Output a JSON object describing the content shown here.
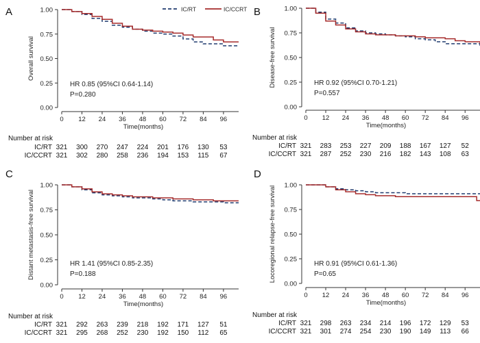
{
  "legend": [
    {
      "name": "IC/RT",
      "color": "#1f3a6e",
      "style": "dashed"
    },
    {
      "name": "IC/CCRT",
      "color": "#a52a2a",
      "style": "solid"
    }
  ],
  "number_at_risk_label": "Number at risk",
  "chart_data": [
    {
      "type": "line",
      "panel_label": "A",
      "ylabel": "Overall survival",
      "xlabel": "Time(months)",
      "ylim": [
        0,
        1
      ],
      "xlim": [
        0,
        105
      ],
      "xticks": [
        0,
        12,
        24,
        36,
        48,
        60,
        72,
        84,
        96
      ],
      "yticks": [
        0,
        0.25,
        0.5,
        0.75,
        1.0
      ],
      "ytick_labels": [
        "0.00",
        "0.25",
        "0.50",
        "0.75",
        "1.00"
      ],
      "annotation": [
        "HR 0.85 (95%CI 0.64-1.14)",
        "P=0.280"
      ],
      "show_legend": true,
      "series": [
        {
          "name": "IC/RT",
          "x": [
            0,
            6,
            12,
            18,
            24,
            30,
            36,
            42,
            48,
            54,
            60,
            66,
            72,
            78,
            84,
            90,
            96,
            105
          ],
          "y": [
            1.0,
            0.98,
            0.95,
            0.91,
            0.88,
            0.84,
            0.82,
            0.8,
            0.78,
            0.76,
            0.75,
            0.73,
            0.7,
            0.67,
            0.65,
            0.65,
            0.63,
            0.63
          ]
        },
        {
          "name": "IC/CCRT",
          "x": [
            0,
            6,
            12,
            18,
            24,
            30,
            36,
            42,
            48,
            54,
            60,
            66,
            72,
            78,
            84,
            90,
            96,
            105
          ],
          "y": [
            1.0,
            0.98,
            0.96,
            0.93,
            0.9,
            0.86,
            0.83,
            0.8,
            0.79,
            0.78,
            0.77,
            0.76,
            0.74,
            0.72,
            0.72,
            0.69,
            0.67,
            0.67
          ]
        }
      ],
      "risk_rows": [
        {
          "name": "IC/RT",
          "counts": [
            321,
            300,
            270,
            247,
            224,
            201,
            176,
            130,
            53
          ]
        },
        {
          "name": "IC/CCRT",
          "counts": [
            321,
            302,
            280,
            258,
            236,
            194,
            153,
            115,
            67
          ]
        }
      ]
    },
    {
      "type": "line",
      "panel_label": "B",
      "ylabel": "Disease-free survival",
      "xlabel": "Time(months)",
      "ylim": [
        0,
        1
      ],
      "xlim": [
        0,
        105
      ],
      "xticks": [
        0,
        12,
        24,
        36,
        48,
        60,
        72,
        84,
        96
      ],
      "yticks": [
        0,
        0.25,
        0.5,
        0.75,
        1.0
      ],
      "ytick_labels": [
        "0.00",
        "0.25",
        "0.50",
        "0.75",
        "1.00"
      ],
      "annotation": [
        "HR 0.92 (95%CI 0.70-1.21)",
        "P=0.557"
      ],
      "show_legend": false,
      "series": [
        {
          "name": "IC/RT",
          "x": [
            0,
            6,
            12,
            18,
            24,
            30,
            36,
            42,
            48,
            54,
            60,
            66,
            72,
            78,
            84,
            90,
            96,
            105
          ],
          "y": [
            1.0,
            0.96,
            0.89,
            0.85,
            0.8,
            0.77,
            0.75,
            0.74,
            0.73,
            0.72,
            0.71,
            0.69,
            0.68,
            0.66,
            0.64,
            0.64,
            0.64,
            0.62
          ]
        },
        {
          "name": "IC/CCRT",
          "x": [
            0,
            6,
            12,
            18,
            24,
            30,
            36,
            42,
            48,
            54,
            60,
            66,
            72,
            78,
            84,
            90,
            96,
            105
          ],
          "y": [
            1.0,
            0.95,
            0.87,
            0.83,
            0.79,
            0.76,
            0.74,
            0.73,
            0.73,
            0.72,
            0.72,
            0.71,
            0.7,
            0.7,
            0.69,
            0.67,
            0.66,
            0.64
          ]
        }
      ],
      "risk_rows": [
        {
          "name": "IC/RT",
          "counts": [
            321,
            283,
            253,
            227,
            209,
            188,
            167,
            127,
            52
          ]
        },
        {
          "name": "IC/CCRT",
          "counts": [
            321,
            287,
            252,
            230,
            216,
            182,
            143,
            108,
            63
          ]
        }
      ]
    },
    {
      "type": "line",
      "panel_label": "C",
      "ylabel": "Distant metastasis-free survival",
      "xlabel": "Time(months)",
      "ylim": [
        0,
        1
      ],
      "xlim": [
        0,
        105
      ],
      "xticks": [
        0,
        12,
        24,
        36,
        48,
        60,
        72,
        84,
        96
      ],
      "yticks": [
        0,
        0.25,
        0.5,
        0.75,
        1.0
      ],
      "ytick_labels": [
        "0.00",
        "0.25",
        "0.50",
        "0.75",
        "1.00"
      ],
      "annotation": [
        "HR 1.41 (95%CI 0.85-2.35)",
        "P=0.188"
      ],
      "show_legend": false,
      "series": [
        {
          "name": "IC/RT",
          "x": [
            0,
            6,
            12,
            18,
            24,
            30,
            36,
            42,
            48,
            54,
            60,
            66,
            72,
            78,
            84,
            90,
            96,
            105
          ],
          "y": [
            1.0,
            0.98,
            0.95,
            0.92,
            0.9,
            0.89,
            0.88,
            0.87,
            0.87,
            0.86,
            0.85,
            0.84,
            0.84,
            0.83,
            0.83,
            0.83,
            0.82,
            0.82
          ]
        },
        {
          "name": "IC/CCRT",
          "x": [
            0,
            6,
            12,
            18,
            24,
            30,
            36,
            42,
            48,
            54,
            60,
            66,
            72,
            78,
            84,
            90,
            96,
            105
          ],
          "y": [
            1.0,
            0.98,
            0.96,
            0.93,
            0.91,
            0.9,
            0.89,
            0.88,
            0.88,
            0.87,
            0.87,
            0.86,
            0.86,
            0.85,
            0.85,
            0.84,
            0.84,
            0.84
          ]
        }
      ],
      "risk_rows": [
        {
          "name": "IC/RT",
          "counts": [
            321,
            292,
            263,
            239,
            218,
            192,
            171,
            127,
            51
          ]
        },
        {
          "name": "IC/CCRT",
          "counts": [
            321,
            295,
            268,
            252,
            230,
            192,
            150,
            112,
            65
          ]
        }
      ]
    },
    {
      "type": "line",
      "panel_label": "D",
      "ylabel": "Locoregional relapse-free survival",
      "xlabel": "Time(months)",
      "ylim": [
        0,
        1
      ],
      "xlim": [
        0,
        105
      ],
      "xticks": [
        0,
        12,
        24,
        36,
        48,
        60,
        72,
        84,
        96
      ],
      "yticks": [
        0,
        0.25,
        0.5,
        0.75,
        1.0
      ],
      "ytick_labels": [
        "0.00",
        "0.25",
        "0.50",
        "0.75",
        "1.00"
      ],
      "annotation": [
        "HR 0.91 (95%CI 0.61-1.36)",
        "P=0.65"
      ],
      "show_legend": false,
      "series": [
        {
          "name": "IC/RT",
          "x": [
            0,
            6,
            12,
            18,
            24,
            30,
            36,
            42,
            48,
            54,
            60,
            66,
            72,
            78,
            84,
            90,
            96,
            105
          ],
          "y": [
            1.0,
            1.0,
            0.98,
            0.96,
            0.95,
            0.94,
            0.93,
            0.92,
            0.92,
            0.92,
            0.91,
            0.91,
            0.91,
            0.91,
            0.91,
            0.91,
            0.91,
            0.91
          ]
        },
        {
          "name": "IC/CCRT",
          "x": [
            0,
            6,
            12,
            18,
            24,
            30,
            36,
            42,
            48,
            54,
            60,
            66,
            72,
            78,
            84,
            90,
            96,
            103,
            103,
            105
          ],
          "y": [
            1.0,
            1.0,
            0.98,
            0.95,
            0.93,
            0.91,
            0.9,
            0.89,
            0.89,
            0.88,
            0.88,
            0.88,
            0.88,
            0.88,
            0.88,
            0.88,
            0.88,
            0.88,
            0.84,
            0.84
          ]
        }
      ],
      "risk_rows": [
        {
          "name": "IC/RT",
          "counts": [
            321,
            298,
            263,
            234,
            214,
            196,
            172,
            129,
            53
          ]
        },
        {
          "name": "IC/CCRT",
          "counts": [
            321,
            301,
            274,
            254,
            230,
            190,
            149,
            113,
            66
          ]
        }
      ]
    }
  ]
}
